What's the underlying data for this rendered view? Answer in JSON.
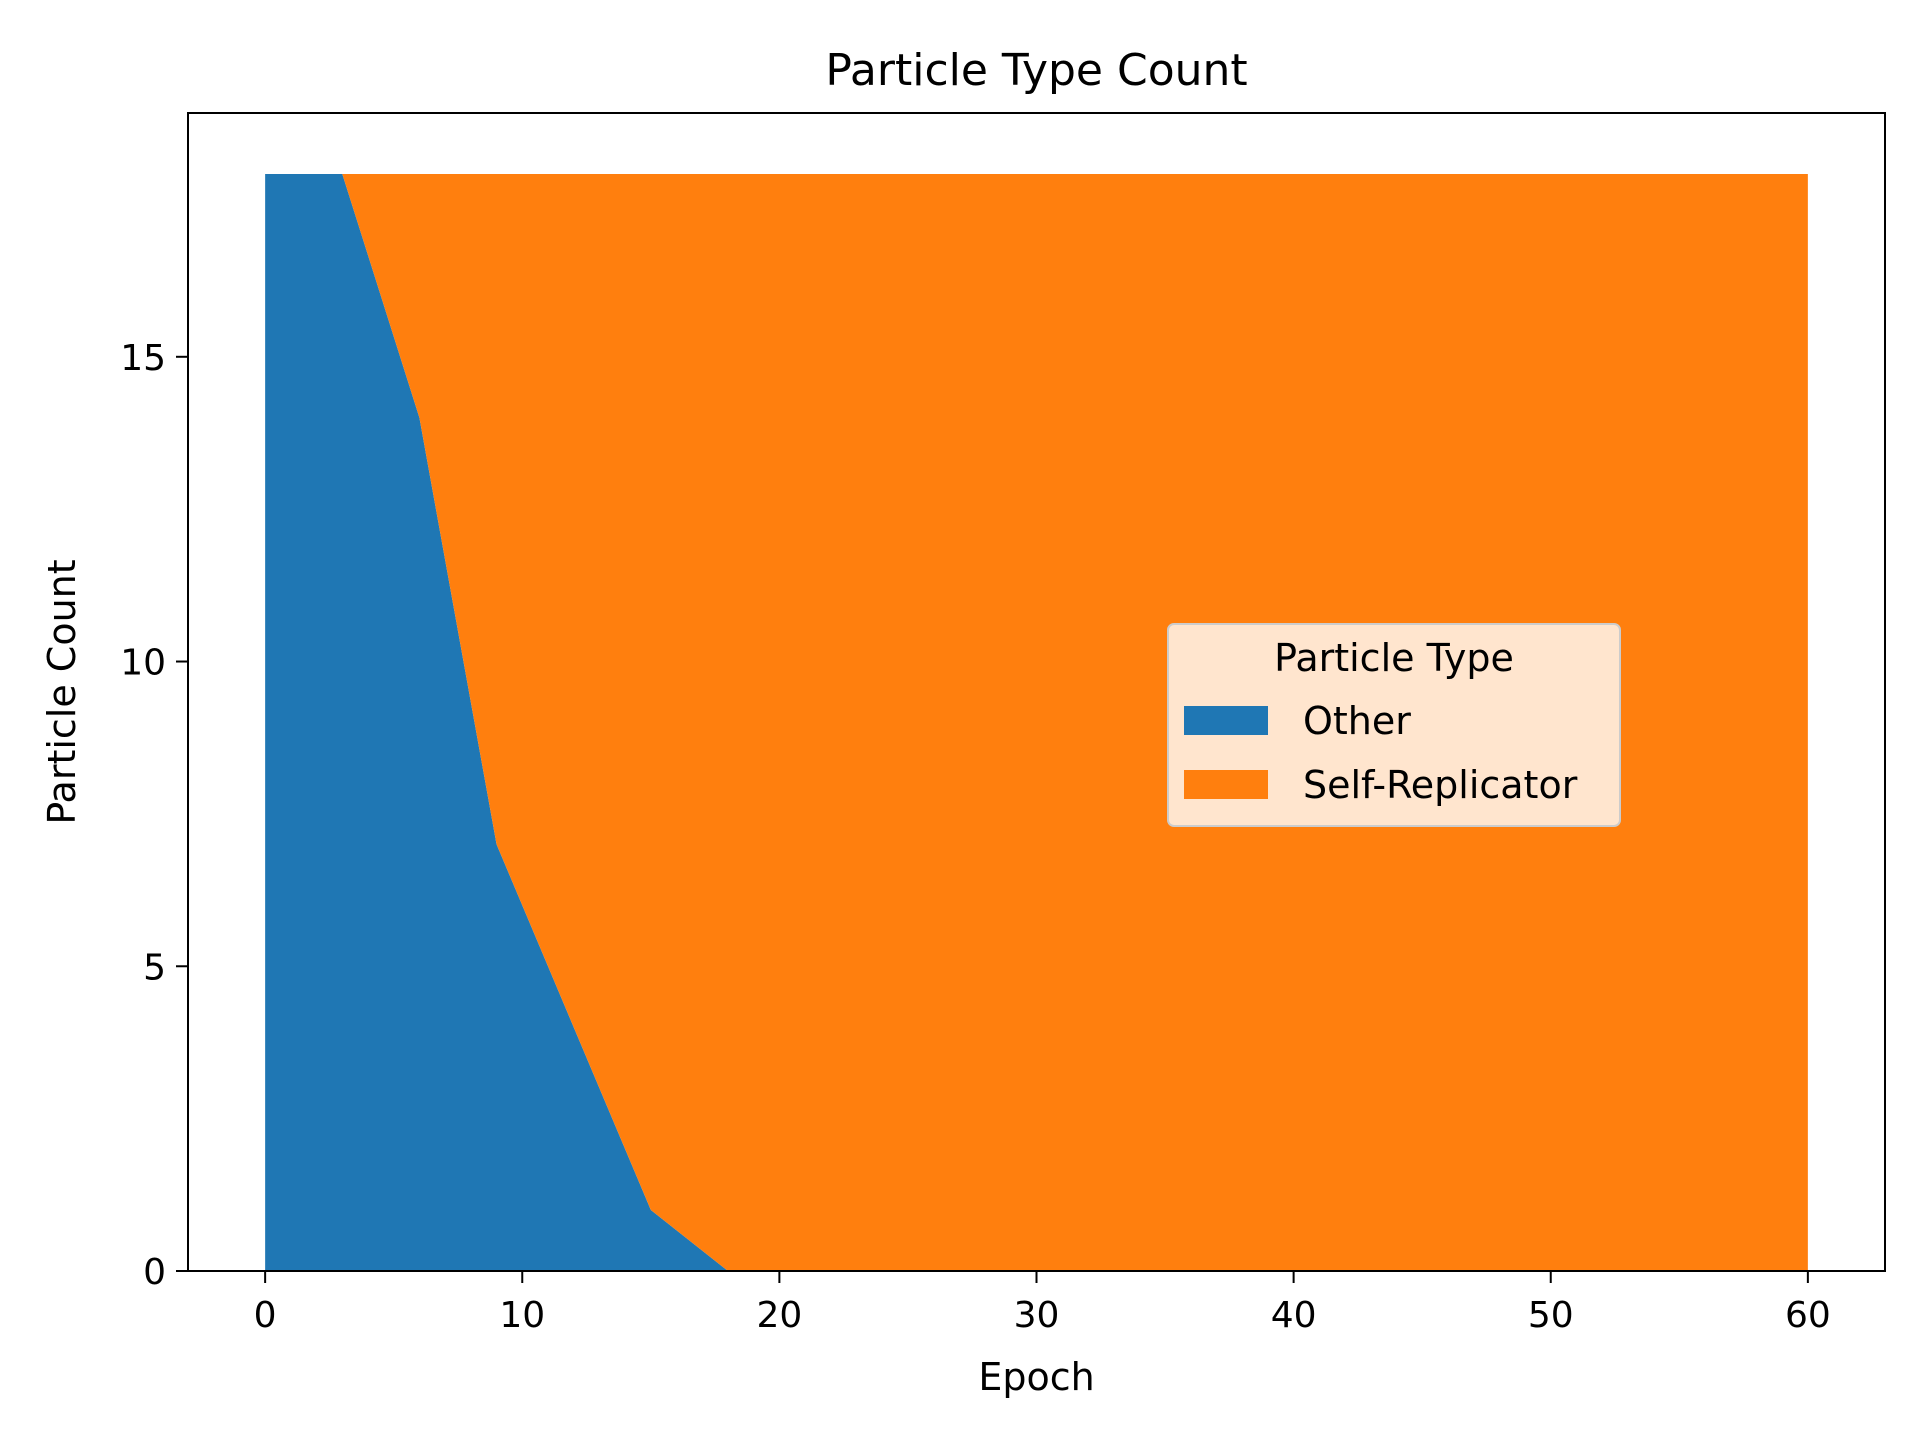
{
  "chart_data": {
    "type": "area",
    "stacked": true,
    "title": "Particle Type Count",
    "xlabel": "Epoch",
    "ylabel": "Particle Count",
    "xlim": [
      -3,
      63
    ],
    "ylim": [
      0,
      19
    ],
    "xticks": [
      0,
      10,
      20,
      30,
      40,
      50,
      60
    ],
    "yticks": [
      0,
      5,
      10,
      15
    ],
    "grid": false,
    "legend": {
      "title": "Particle Type",
      "placement": "center-right"
    },
    "x": [
      0,
      3,
      6,
      9,
      12,
      15,
      18,
      21,
      24,
      27,
      30,
      33,
      36,
      39,
      42,
      45,
      48,
      51,
      54,
      57,
      60
    ],
    "series": [
      {
        "name": "Other",
        "color": "#1f77b4",
        "values": [
          18,
          18,
          14,
          7,
          4,
          1,
          0,
          0,
          0,
          0,
          0,
          0,
          0,
          0,
          0,
          0,
          0,
          0,
          0,
          0,
          0
        ]
      },
      {
        "name": "Self-Replicator",
        "color": "#ff7f0e",
        "values": [
          0,
          0,
          4,
          11,
          14,
          17,
          18,
          18,
          18,
          18,
          18,
          18,
          18,
          18,
          18,
          18,
          18,
          18,
          18,
          18,
          18
        ]
      }
    ]
  }
}
